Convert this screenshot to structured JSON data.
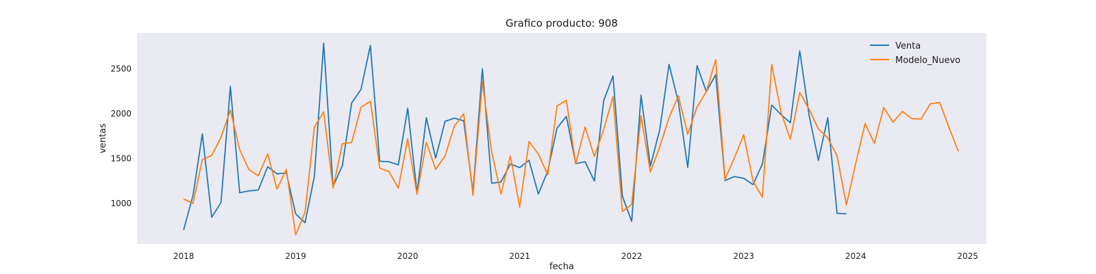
{
  "chart_data": {
    "type": "line",
    "title": "Grafico producto: 908",
    "xlabel": "fecha",
    "ylabel": "ventas",
    "xlim": [
      "2017-08",
      "2025-03"
    ],
    "ylim": [
      550,
      2900
    ],
    "x_ticks": [
      "2018",
      "2019",
      "2020",
      "2021",
      "2022",
      "2023",
      "2024",
      "2025"
    ],
    "y_ticks": [
      1000,
      1500,
      2000,
      2500
    ],
    "grid": false,
    "background": "#eaeaf2",
    "legend_position": "top-right",
    "series": [
      {
        "name": "Venta",
        "color": "#1f77b4",
        "start": "2018-01",
        "values": [
          705,
          1090,
          1775,
          845,
          1010,
          2305,
          1120,
          1140,
          1150,
          1410,
          1330,
          1340,
          885,
          785,
          1300,
          2785,
          1190,
          1420,
          2120,
          2270,
          2760,
          1470,
          1465,
          1430,
          2060,
          1120,
          1955,
          1505,
          1915,
          1950,
          1920,
          1125,
          2500,
          1225,
          1240,
          1440,
          1400,
          1480,
          1105,
          1360,
          1840,
          1970,
          1445,
          1465,
          1250,
          2145,
          2420,
          1080,
          800,
          2205,
          1415,
          1820,
          2550,
          2130,
          1400,
          2535,
          2245,
          2435,
          1255,
          1300,
          1280,
          1210,
          1440,
          2095,
          1990,
          1900,
          2700,
          1985,
          1480,
          1955,
          890,
          885
        ]
      },
      {
        "name": "Modelo_Nuevo",
        "color": "#ff7f0e",
        "start": "2018-01",
        "values": [
          1050,
          1000,
          1490,
          1535,
          1735,
          2040,
          1600,
          1375,
          1310,
          1550,
          1160,
          1380,
          650,
          900,
          1850,
          2020,
          1170,
          1665,
          1680,
          2070,
          2140,
          1395,
          1355,
          1170,
          1720,
          1100,
          1680,
          1380,
          1530,
          1860,
          2000,
          1090,
          2355,
          1575,
          1105,
          1530,
          960,
          1690,
          1550,
          1320,
          2085,
          2150,
          1440,
          1850,
          1525,
          1825,
          2190,
          910,
          990,
          1975,
          1350,
          1630,
          1955,
          2200,
          1770,
          2075,
          2245,
          2600,
          1270,
          1510,
          1765,
          1250,
          1070,
          2550,
          2015,
          1715,
          2235,
          2050,
          1830,
          1730,
          1530,
          985,
          1445,
          1890,
          1670,
          2070,
          1905,
          2025,
          1945,
          1940,
          2110,
          2125,
          1845,
          1580
        ]
      }
    ]
  }
}
